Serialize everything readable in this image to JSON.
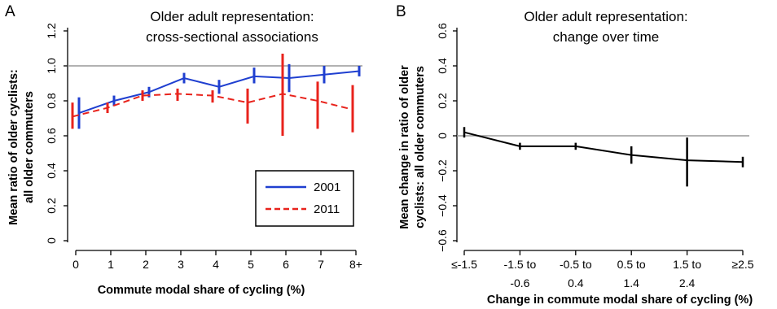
{
  "chart_data": [
    {
      "panel": "A",
      "type": "line",
      "title": [
        "Older adult representation:",
        "cross-sectional associations"
      ],
      "xlabel": "Commute modal share of cycling (%)",
      "ylabel": [
        "Mean ratio of older cyclists:",
        "all older commuters"
      ],
      "categories": [
        "0",
        "1",
        "2",
        "3",
        "4",
        "5",
        "6",
        "7",
        "8+"
      ],
      "ylim": [
        0,
        1.2
      ],
      "yticks": [
        "0",
        "0.2",
        "0.4",
        "0.6",
        "0.8",
        "1.0",
        "1.2"
      ],
      "reference_line": 1.0,
      "error_bars": true,
      "legend": {
        "position": "bottom-right"
      },
      "series": [
        {
          "name": "2001",
          "color": "#1f3fd0",
          "style": "solid",
          "values": [
            0.73,
            0.8,
            0.85,
            0.93,
            0.88,
            0.94,
            0.93,
            0.95,
            0.97
          ],
          "lower": [
            0.64,
            0.77,
            0.82,
            0.9,
            0.84,
            0.9,
            0.85,
            0.9,
            0.94
          ],
          "upper": [
            0.82,
            0.83,
            0.88,
            0.96,
            0.92,
            0.99,
            1.01,
            1.0,
            1.0
          ]
        },
        {
          "name": "2011",
          "color": "#e8231c",
          "style": "dashed",
          "values": [
            0.71,
            0.76,
            0.83,
            0.84,
            0.83,
            0.79,
            0.84,
            0.8,
            0.75
          ],
          "lower": [
            0.64,
            0.73,
            0.8,
            0.8,
            0.79,
            0.67,
            0.6,
            0.64,
            0.62
          ],
          "upper": [
            0.79,
            0.79,
            0.86,
            0.87,
            0.86,
            0.87,
            1.07,
            0.91,
            0.89
          ]
        }
      ]
    },
    {
      "panel": "B",
      "type": "line",
      "title": [
        "Older adult representation:",
        "change over time"
      ],
      "xlabel": "Change in commute modal share of cycling (%)",
      "ylabel": [
        "Mean change in ratio of older",
        "cyclists: all older commuters"
      ],
      "categories": [
        [
          "≤-1.5"
        ],
        [
          "-1.5 to",
          "-0.6"
        ],
        [
          "-0.5 to",
          "0.4"
        ],
        [
          "0.5 to",
          "1.4"
        ],
        [
          "1.5 to",
          "2.4"
        ],
        [
          "≥2.5"
        ]
      ],
      "ylim": [
        -0.6,
        0.6
      ],
      "yticks": [
        "−0.6",
        "−0.4",
        "−0.2",
        "0",
        "0.2",
        "0.4",
        "0.6"
      ],
      "reference_line": 0,
      "error_bars": true,
      "series": [
        {
          "color": "#000000",
          "style": "solid",
          "values": [
            0.02,
            -0.06,
            -0.06,
            -0.11,
            -0.14,
            -0.15
          ],
          "lower": [
            -0.01,
            -0.08,
            -0.08,
            -0.16,
            -0.29,
            -0.18
          ],
          "upper": [
            0.05,
            -0.04,
            -0.04,
            -0.06,
            -0.01,
            -0.12
          ]
        }
      ]
    }
  ]
}
